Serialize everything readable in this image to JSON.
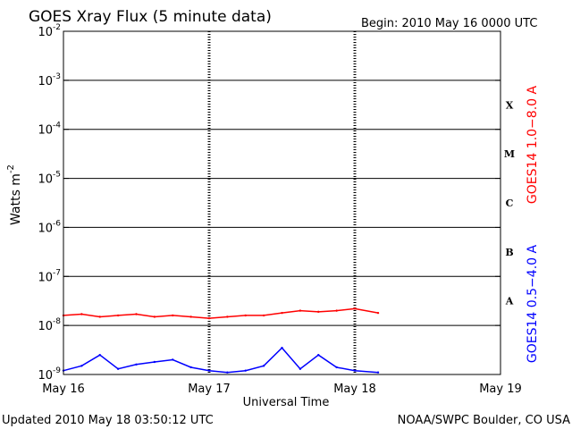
{
  "title": "GOES Xray Flux (5 minute data)",
  "begin_label": "Begin:  2010 May 16 0000 UTC",
  "updated_label": "Updated 2010 May 18 03:50:12 UTC",
  "credit": "NOAA/SWPC Boulder, CO USA",
  "colors": {
    "long": "#ff0000",
    "short": "#0000ff",
    "axis": "#000000"
  },
  "chart_data": {
    "type": "line",
    "title": "GOES Xray Flux (5 minute data)",
    "xlabel": "Universal Time",
    "ylabel": "Watts m-2",
    "y_scale": "log",
    "ylim": [
      1e-09,
      0.01
    ],
    "y_ticks": [
      {
        "base": "10",
        "exp": "-9"
      },
      {
        "base": "10",
        "exp": "-8"
      },
      {
        "base": "10",
        "exp": "-7"
      },
      {
        "base": "10",
        "exp": "-6"
      },
      {
        "base": "10",
        "exp": "-5"
      },
      {
        "base": "10",
        "exp": "-4"
      },
      {
        "base": "10",
        "exp": "-3"
      },
      {
        "base": "10",
        "exp": "-2"
      }
    ],
    "x_range_days": [
      "2010-05-16",
      "2010-05-19"
    ],
    "x_ticks": [
      "May 16",
      "May 17",
      "May 18",
      "May 19"
    ],
    "flare_classes": [
      "A",
      "B",
      "C",
      "M",
      "X"
    ],
    "grid": true,
    "series": [
      {
        "name": "GOES14 1.0−8.0 A",
        "color": "#ff0000",
        "x": [
          "2010-05-16 00:00",
          "2010-05-16 03:00",
          "2010-05-16 06:00",
          "2010-05-16 09:00",
          "2010-05-16 12:00",
          "2010-05-16 15:00",
          "2010-05-16 18:00",
          "2010-05-16 21:00",
          "2010-05-17 00:00",
          "2010-05-17 03:00",
          "2010-05-17 06:00",
          "2010-05-17 09:00",
          "2010-05-17 12:00",
          "2010-05-17 15:00",
          "2010-05-17 18:00",
          "2010-05-17 21:00",
          "2010-05-18 00:00",
          "2010-05-18 03:50"
        ],
        "y": [
          1.6e-08,
          1.7e-08,
          1.5e-08,
          1.6e-08,
          1.7e-08,
          1.5e-08,
          1.6e-08,
          1.5e-08,
          1.4e-08,
          1.5e-08,
          1.6e-08,
          1.6e-08,
          1.8e-08,
          2e-08,
          1.9e-08,
          2e-08,
          2.2e-08,
          1.8e-08
        ]
      },
      {
        "name": "GOES14 0.5−4.0 A",
        "color": "#0000ff",
        "x": [
          "2010-05-16 00:00",
          "2010-05-16 03:00",
          "2010-05-16 06:00",
          "2010-05-16 09:00",
          "2010-05-16 12:00",
          "2010-05-16 15:00",
          "2010-05-16 18:00",
          "2010-05-16 21:00",
          "2010-05-17 00:00",
          "2010-05-17 03:00",
          "2010-05-17 06:00",
          "2010-05-17 09:00",
          "2010-05-17 12:00",
          "2010-05-17 15:00",
          "2010-05-17 18:00",
          "2010-05-17 21:00",
          "2010-05-18 00:00",
          "2010-05-18 03:50"
        ],
        "y": [
          1.2e-09,
          1.5e-09,
          2.5e-09,
          1.3e-09,
          1.6e-09,
          1.8e-09,
          2e-09,
          1.4e-09,
          1.2e-09,
          1.1e-09,
          1.2e-09,
          1.5e-09,
          3.5e-09,
          1.3e-09,
          2.5e-09,
          1.4e-09,
          1.2e-09,
          1.1e-09
        ]
      }
    ]
  }
}
